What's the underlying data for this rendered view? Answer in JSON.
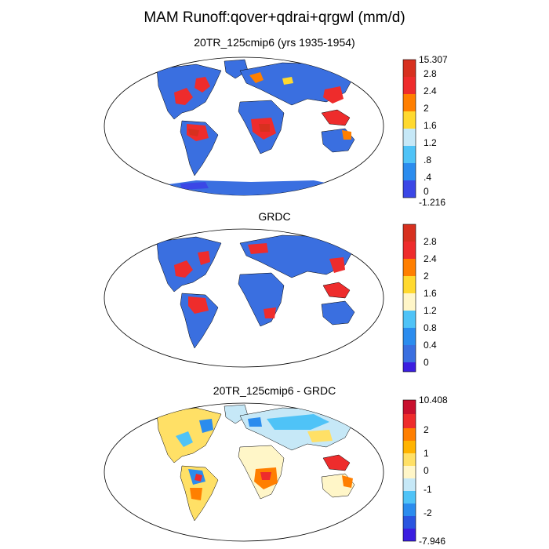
{
  "title": "MAM Runoff:qover+qdrai+qrgwl (mm/d)",
  "panels": [
    {
      "title": "20TR_125cmip6 (yrs 1935-1954)",
      "colorbar_labels": [
        "15.307",
        "2.8",
        "2.4",
        "2",
        "1.6",
        "1.2",
        ".8",
        ".4",
        "0",
        "-1.216"
      ],
      "colors": [
        "#d7301f",
        "#ee2c2c",
        "#ff7f00",
        "#ffd92f",
        "#c6e8f7",
        "#4fc3f7",
        "#2b8cee",
        "#3a6fe0",
        "#3b47e6",
        "#3b1ee0"
      ]
    },
    {
      "title": "GRDC",
      "colorbar_labels": [
        "2.8",
        "2.4",
        "2",
        "1.6",
        "1.2",
        "0.8",
        "0.4",
        "0"
      ],
      "colors": [
        "#d7301f",
        "#ee2c2c",
        "#ff7f00",
        "#ffd92f",
        "#fff6c8",
        "#c6e8f7",
        "#4fc3f7",
        "#2b8cee",
        "#3a6fe0",
        "#3b1ee0"
      ]
    },
    {
      "title": "20TR_125cmip6 - GRDC",
      "colorbar_labels": [
        "10.408",
        "2",
        "1",
        "0",
        "-1",
        "-2",
        "-7.946"
      ],
      "colors": [
        "#c8102e",
        "#ee2c2c",
        "#ff7f00",
        "#ffb300",
        "#ffe066",
        "#fff6c8",
        "#c6e8f7",
        "#4fc3f7",
        "#2b8cee",
        "#2a55e0",
        "#3b1ee0"
      ]
    }
  ]
}
